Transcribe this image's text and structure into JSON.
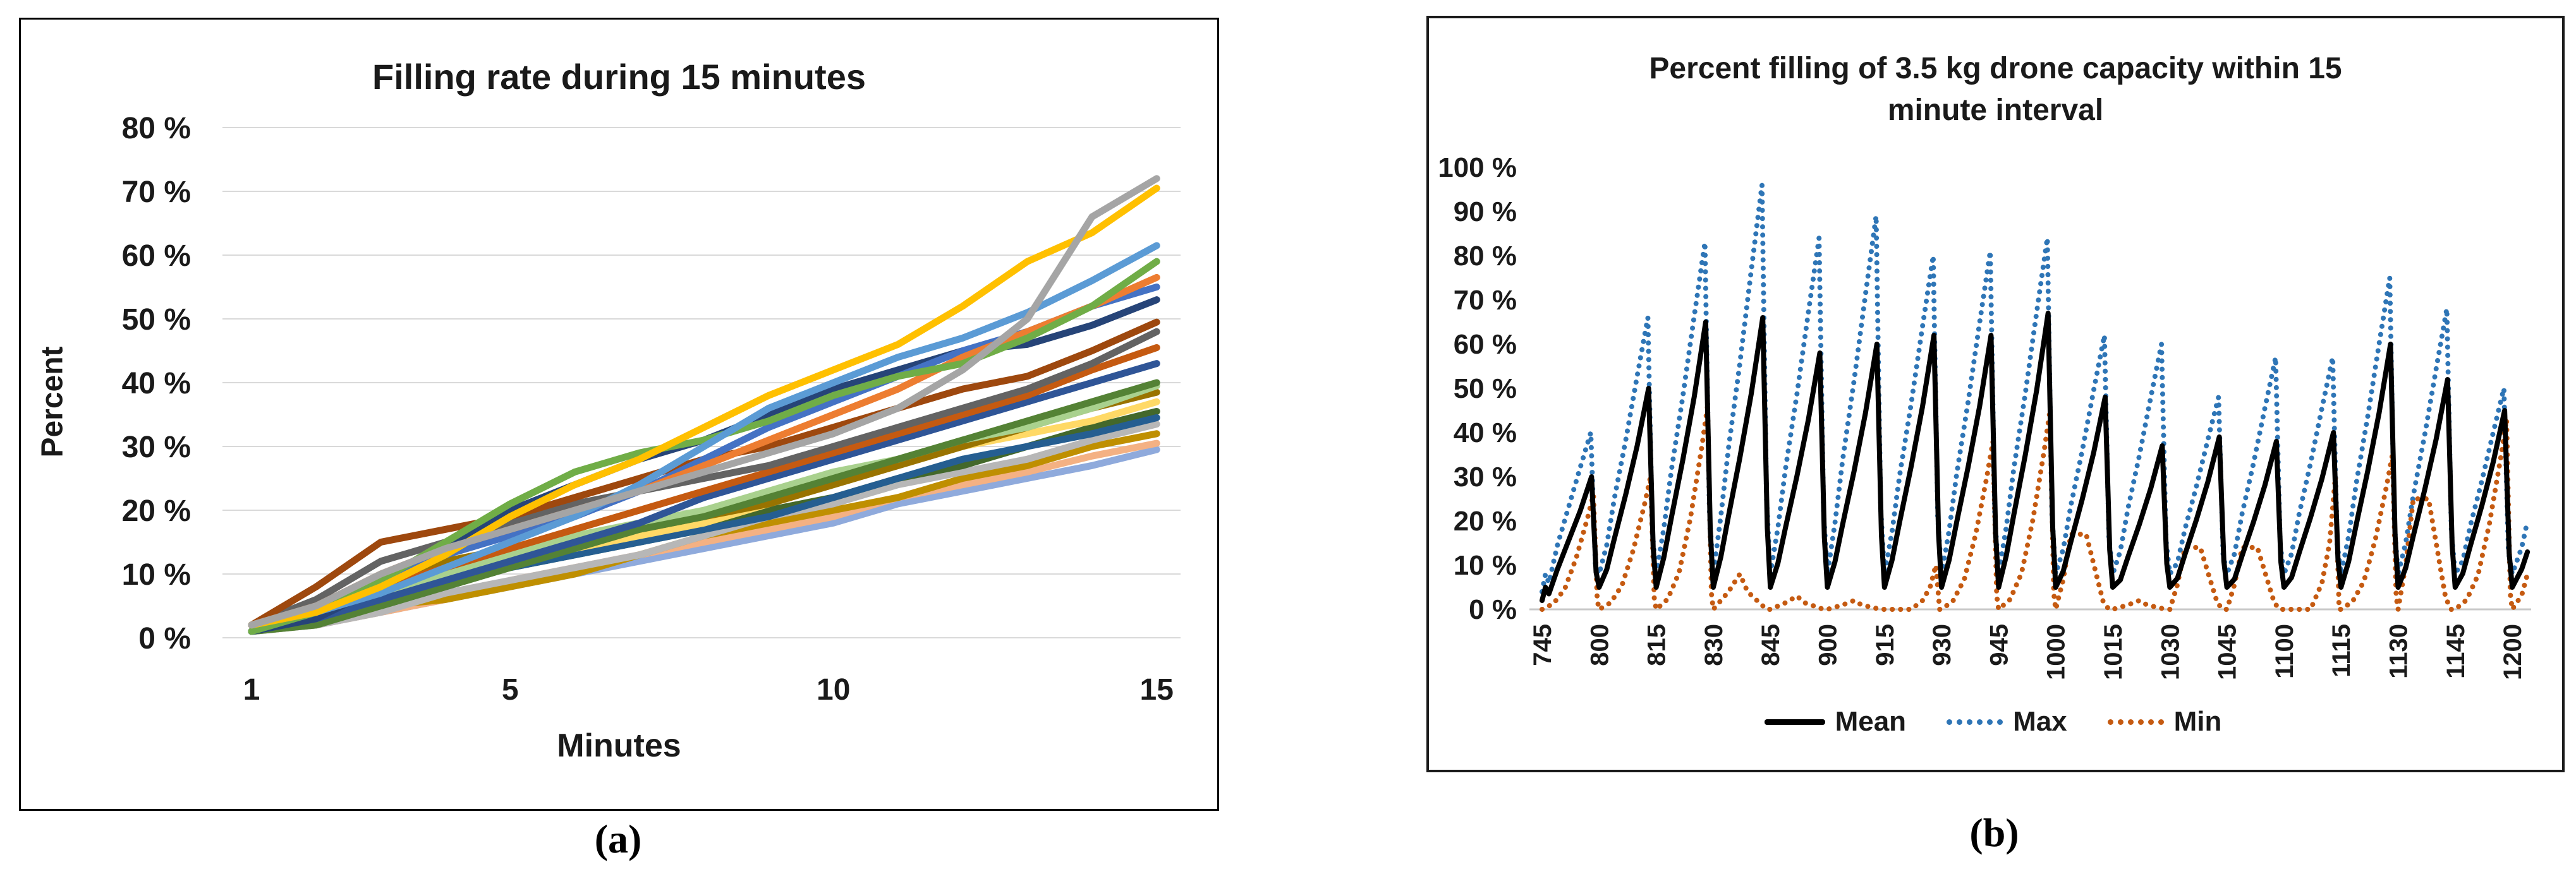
{
  "figure": {
    "panel_a": {
      "caption": "(a)"
    },
    "panel_b": {
      "caption": "(b)"
    }
  },
  "chart_data": [
    {
      "id": "filling-rate",
      "type": "line",
      "title": "Filling rate during 15 minutes",
      "xlabel": "Minutes",
      "ylabel": "Percent",
      "x": [
        1,
        2,
        3,
        4,
        5,
        6,
        7,
        8,
        9,
        10,
        11,
        12,
        13,
        14,
        15
      ],
      "x_tick_values": [
        1,
        5,
        10,
        15
      ],
      "x_tick_labels": [
        "1",
        "5",
        "10",
        "15"
      ],
      "ylim": [
        0,
        80
      ],
      "y_tick_labels": [
        "0 %",
        "10 %",
        "20 %",
        "30 %",
        "40 %",
        "50 %",
        "60 %",
        "70 %",
        "80 %"
      ],
      "grid": true,
      "legend_position": "none",
      "series": [
        {
          "name": "line-01",
          "color": "#8FAADC",
          "values": [
            1,
            2,
            4,
            6,
            8,
            10,
            12,
            14,
            16,
            18,
            21,
            23,
            25,
            27,
            29.5
          ]
        },
        {
          "name": "line-02",
          "color": "#F4B183",
          "values": [
            1,
            2,
            4,
            6,
            9,
            11,
            13,
            15,
            17,
            19,
            22,
            24,
            26,
            28.5,
            30.5
          ]
        },
        {
          "name": "line-03",
          "color": "#BF8F00",
          "values": [
            2,
            3,
            5,
            6,
            8,
            10,
            13,
            16,
            18,
            20,
            22,
            25,
            27,
            30,
            32
          ]
        },
        {
          "name": "line-04",
          "color": "#B7B7B7",
          "values": [
            1,
            2,
            4,
            7,
            9,
            11,
            13,
            16,
            19,
            21,
            24,
            26,
            28,
            31,
            33.5
          ]
        },
        {
          "name": "line-05",
          "color": "#43682B",
          "values": [
            1,
            3,
            5,
            8,
            11,
            13,
            15,
            17,
            20,
            22,
            25,
            27,
            30,
            33,
            35.5
          ]
        },
        {
          "name": "line-06",
          "color": "#255E91",
          "values": [
            1,
            3,
            6,
            9,
            11,
            13,
            15,
            17,
            19,
            22,
            25,
            28,
            30,
            32,
            34.5
          ]
        },
        {
          "name": "line-07",
          "color": "#FFD966",
          "values": [
            2,
            4,
            7,
            10,
            12,
            14,
            16,
            18,
            21,
            24,
            27,
            30,
            32,
            34,
            37
          ]
        },
        {
          "name": "line-08",
          "color": "#997300",
          "values": [
            2,
            5,
            9,
            12,
            14,
            16,
            17,
            19,
            21,
            24,
            27,
            30,
            33,
            36,
            38.5
          ]
        },
        {
          "name": "line-09",
          "color": "#A9D18E",
          "values": [
            1,
            3,
            6,
            10,
            13,
            16,
            18,
            20,
            23,
            26,
            28,
            31,
            33,
            36,
            39.5
          ]
        },
        {
          "name": "line-10",
          "color": "#548235",
          "values": [
            1,
            2,
            5,
            8,
            11,
            14,
            17,
            19,
            22,
            25,
            28,
            31,
            34,
            37,
            40
          ]
        },
        {
          "name": "line-11",
          "color": "#2F5597",
          "values": [
            1,
            3,
            6,
            9,
            12,
            15,
            18,
            22,
            25,
            28,
            31,
            34,
            37,
            40,
            43
          ]
        },
        {
          "name": "line-12",
          "color": "#C55A11",
          "values": [
            1,
            4,
            8,
            11,
            14,
            17,
            20,
            23,
            26,
            29,
            32,
            35,
            38,
            42,
            45.5
          ]
        },
        {
          "name": "line-13",
          "color": "#636363",
          "values": [
            2,
            6,
            12,
            15,
            18,
            21,
            23,
            25,
            27,
            30,
            33,
            36,
            39,
            43,
            48
          ]
        },
        {
          "name": "line-14",
          "color": "#9E480E",
          "values": [
            2,
            8,
            15,
            17,
            19,
            22,
            25,
            28,
            30,
            33,
            36,
            39,
            41,
            45,
            49.5
          ]
        },
        {
          "name": "line-15",
          "color": "#264478",
          "values": [
            1,
            3,
            8,
            14,
            20,
            24,
            28,
            31,
            35,
            39,
            42,
            45,
            46,
            49,
            53
          ]
        },
        {
          "name": "line-16",
          "color": "#4472C4",
          "values": [
            1,
            4,
            9,
            13,
            16,
            19,
            23,
            28,
            33,
            37,
            41,
            45,
            48,
            52,
            55
          ]
        },
        {
          "name": "line-17",
          "color": "#ED7D31",
          "values": [
            2,
            5,
            10,
            14,
            17,
            20,
            23,
            27,
            31,
            35,
            39,
            44,
            48,
            52,
            56.5
          ]
        },
        {
          "name": "line-18",
          "color": "#70AD47",
          "values": [
            1,
            4,
            9,
            15,
            21,
            26,
            29,
            31,
            34,
            38,
            41,
            43,
            47,
            52,
            59
          ]
        },
        {
          "name": "line-19",
          "color": "#5B9BD5",
          "values": [
            2,
            4,
            7,
            11,
            15,
            19,
            24,
            30,
            36,
            40,
            44,
            47,
            51,
            56,
            61.5
          ]
        },
        {
          "name": "line-20",
          "color": "#FFC000",
          "values": [
            2,
            4,
            8,
            13,
            19,
            24,
            28,
            33,
            38,
            42,
            46,
            52,
            59,
            63.5,
            70.5
          ]
        },
        {
          "name": "line-21",
          "color": "#A5A5A5",
          "values": [
            2,
            5,
            10,
            14,
            17,
            20,
            23,
            26,
            29,
            32,
            36,
            42,
            50,
            66,
            72
          ]
        }
      ]
    },
    {
      "id": "drone-capacity-fill",
      "type": "line",
      "title": "Percent filling of 3.5 kg drone capacity within 15 minute interval",
      "title_lines": [
        "Percent filling of 3.5 kg drone capacity within 15",
        "minute interval"
      ],
      "ylim": [
        0,
        100
      ],
      "y_tick_labels": [
        "0 %",
        "10 %",
        "20 %",
        "30 %",
        "40 %",
        "50 %",
        "60 %",
        "70 %",
        "80 %",
        "90 %",
        "100 %"
      ],
      "x_tick_labels": [
        "745",
        "800",
        "815",
        "830",
        "845",
        "900",
        "915",
        "930",
        "945",
        "1000",
        "1015",
        "1030",
        "1045",
        "1100",
        "1115",
        "1130",
        "1145",
        "1200"
      ],
      "interval_minutes": 15,
      "legend_position": "bottom",
      "legend": [
        {
          "label": "Mean",
          "color": "#000000",
          "style": "solid"
        },
        {
          "label": "Max",
          "color": "#2E75B6",
          "style": "dotted"
        },
        {
          "label": "Min",
          "color": "#C55A11",
          "style": "dotted"
        }
      ],
      "first_point": {
        "mean": 2,
        "max": 4,
        "min": 0
      },
      "cycle_start_values": {
        "mean": 5,
        "max": 8,
        "min": 0
      },
      "cycles": [
        {
          "end_label": "800",
          "mean_peak": 30,
          "max_peak": 40,
          "min_peak": 26,
          "min_shape": "rise"
        },
        {
          "end_label": "815",
          "mean_peak": 50,
          "max_peak": 66,
          "min_peak": 30,
          "min_shape": "rise"
        },
        {
          "end_label": "830",
          "mean_peak": 65,
          "max_peak": 83,
          "min_peak": 46,
          "min_shape": "rise"
        },
        {
          "end_label": "845",
          "mean_peak": 66,
          "max_peak": 96,
          "min_peak": 8,
          "min_shape": "low"
        },
        {
          "end_label": "900",
          "mean_peak": 58,
          "max_peak": 84,
          "min_peak": 3,
          "min_shape": "low"
        },
        {
          "end_label": "915",
          "mean_peak": 60,
          "max_peak": 89,
          "min_peak": 2,
          "min_shape": "low"
        },
        {
          "end_label": "930",
          "mean_peak": 62,
          "max_peak": 80,
          "min_peak": 10,
          "min_shape": "late-spike"
        },
        {
          "end_label": "945",
          "mean_peak": 62,
          "max_peak": 81,
          "min_peak": 38,
          "min_shape": "rise"
        },
        {
          "end_label": "1000",
          "mean_peak": 67,
          "max_peak": 84,
          "min_peak": 45,
          "min_shape": "rise"
        },
        {
          "end_label": "1015",
          "mean_peak": 48,
          "max_peak": 62,
          "min_peak": 17,
          "min_shape": "plateau"
        },
        {
          "end_label": "1030",
          "mean_peak": 37,
          "max_peak": 60,
          "min_peak": 2,
          "min_shape": "low"
        },
        {
          "end_label": "1045",
          "mean_peak": 39,
          "max_peak": 48,
          "min_peak": 14,
          "min_shape": "plateau"
        },
        {
          "end_label": "1100",
          "mean_peak": 38,
          "max_peak": 57,
          "min_peak": 14,
          "min_shape": "plateau"
        },
        {
          "end_label": "1115",
          "mean_peak": 40,
          "max_peak": 57,
          "min_peak": 30,
          "min_shape": "late-spike"
        },
        {
          "end_label": "1130",
          "mean_peak": 60,
          "max_peak": 75,
          "min_peak": 35,
          "min_shape": "rise"
        },
        {
          "end_label": "1145",
          "mean_peak": 52,
          "max_peak": 68,
          "min_peak": 25,
          "min_shape": "plateau"
        },
        {
          "end_label": "1200",
          "mean_peak": 45,
          "max_peak": 50,
          "min_peak": 43,
          "min_shape": "rise"
        }
      ],
      "tail": {
        "mean": 13,
        "max": 20,
        "min": 8
      }
    }
  ]
}
